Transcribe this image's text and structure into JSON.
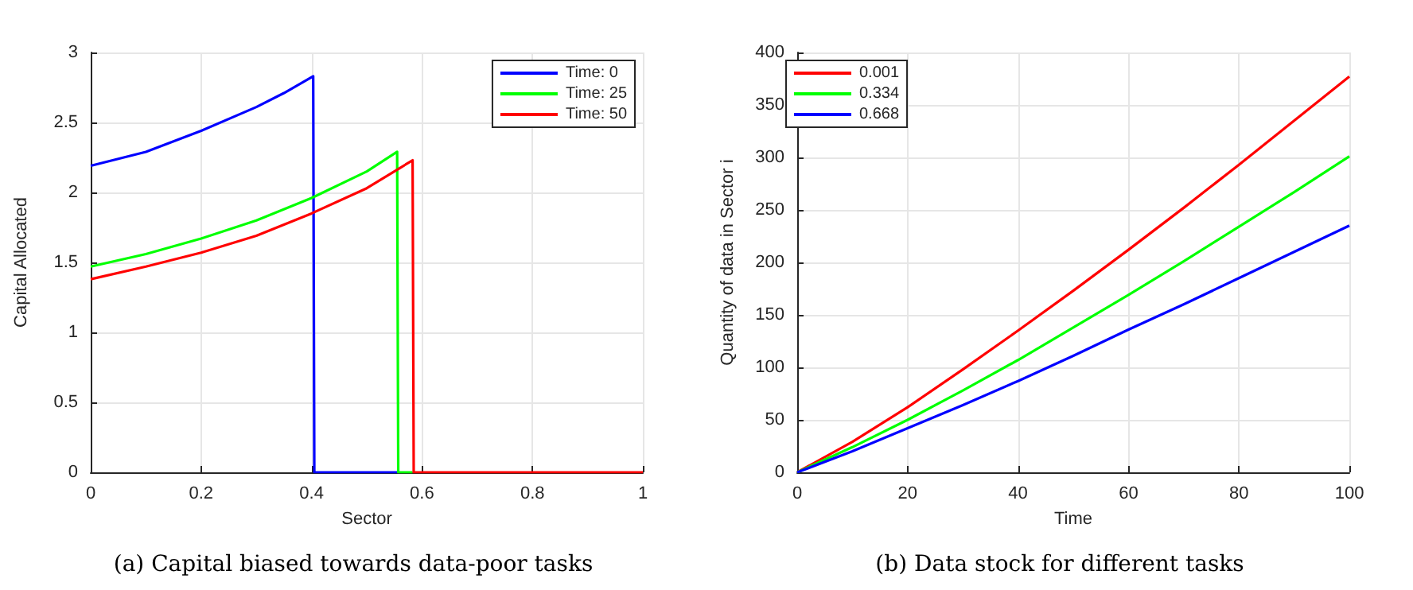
{
  "chart_data": [
    {
      "type": "line",
      "title": "(a) Capital biased towards data-poor tasks",
      "xlabel": "Sector",
      "ylabel": "Capital Allocated",
      "xlim": [
        0,
        1
      ],
      "ylim": [
        0,
        3
      ],
      "xticks": [
        0,
        0.2,
        0.4,
        0.6,
        0.8,
        1
      ],
      "yticks": [
        0,
        0.5,
        1,
        1.5,
        2,
        2.5,
        3
      ],
      "grid": true,
      "legend": "top right",
      "series": [
        {
          "name": "Time: 0",
          "color": "#0000ff",
          "x": [
            0,
            0.1,
            0.2,
            0.3,
            0.35,
            0.403,
            0.405,
            0.555
          ],
          "values": [
            2.19,
            2.29,
            2.44,
            2.61,
            2.71,
            2.83,
            0,
            0
          ]
        },
        {
          "name": "Time: 25",
          "color": "#00ff00",
          "x": [
            0,
            0.1,
            0.2,
            0.3,
            0.4,
            0.5,
            0.555,
            0.557,
            0.583
          ],
          "values": [
            1.47,
            1.56,
            1.67,
            1.8,
            1.96,
            2.15,
            2.29,
            0,
            0
          ]
        },
        {
          "name": "Time: 50",
          "color": "#ff0000",
          "x": [
            0,
            0.1,
            0.2,
            0.3,
            0.4,
            0.5,
            0.583,
            0.585,
            1
          ],
          "values": [
            1.38,
            1.47,
            1.57,
            1.69,
            1.85,
            2.03,
            2.23,
            0,
            0
          ]
        }
      ]
    },
    {
      "type": "line",
      "title": "(b) Data stock for different tasks",
      "xlabel": "Time",
      "ylabel": "Quantity of data in Sector i",
      "xlim": [
        0,
        100
      ],
      "ylim": [
        0,
        400
      ],
      "xticks": [
        0,
        20,
        40,
        60,
        80,
        100
      ],
      "yticks": [
        0,
        50,
        100,
        150,
        200,
        250,
        300,
        350,
        400
      ],
      "grid": true,
      "legend": "top left",
      "series": [
        {
          "name": "0.001",
          "color": "#ff0000",
          "x": [
            0,
            10,
            20,
            30,
            40,
            50,
            60,
            70,
            80,
            90,
            100
          ],
          "values": [
            0,
            29,
            62,
            98,
            135,
            173,
            212,
            252,
            293,
            335,
            377
          ]
        },
        {
          "name": "0.334",
          "color": "#00ff00",
          "x": [
            0,
            10,
            20,
            30,
            40,
            50,
            60,
            70,
            80,
            90,
            100
          ],
          "values": [
            0,
            24,
            50,
            78,
            107,
            138,
            169,
            201,
            234,
            267,
            301
          ]
        },
        {
          "name": "0.668",
          "color": "#0000ff",
          "x": [
            0,
            10,
            20,
            30,
            40,
            50,
            60,
            70,
            80,
            90,
            100
          ],
          "values": [
            0,
            20,
            42,
            64,
            87,
            111,
            136,
            160,
            185,
            210,
            235
          ]
        }
      ]
    }
  ]
}
